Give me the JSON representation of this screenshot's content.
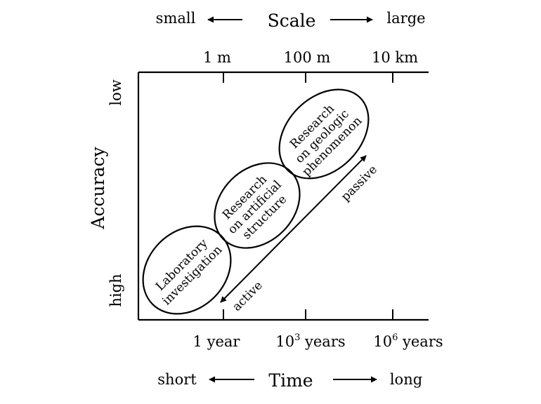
{
  "scale": {
    "title": "Scale",
    "small": "small",
    "large": "large"
  },
  "time": {
    "title": "Time",
    "short": "short",
    "long": "long"
  },
  "accuracy": {
    "title": "Accuracy",
    "low": "low",
    "high": "high"
  },
  "scale_ticks": [
    "1 m",
    "100 m",
    "10 km"
  ],
  "time_ticks": [
    {
      "base": "1 year",
      "sup": "",
      "rest": ""
    },
    {
      "base": "10",
      "sup": "3",
      "rest": " years"
    },
    {
      "base": "10",
      "sup": "6",
      "rest": " years"
    }
  ],
  "regions": [
    {
      "lines": [
        "Laboratory",
        "investigation"
      ]
    },
    {
      "lines": [
        "Research",
        "on artificial",
        "structure"
      ]
    },
    {
      "lines": [
        "Research",
        "on geologic",
        "phenomenon"
      ]
    }
  ],
  "arrow_labels": {
    "passive": "passive",
    "active": "active"
  }
}
